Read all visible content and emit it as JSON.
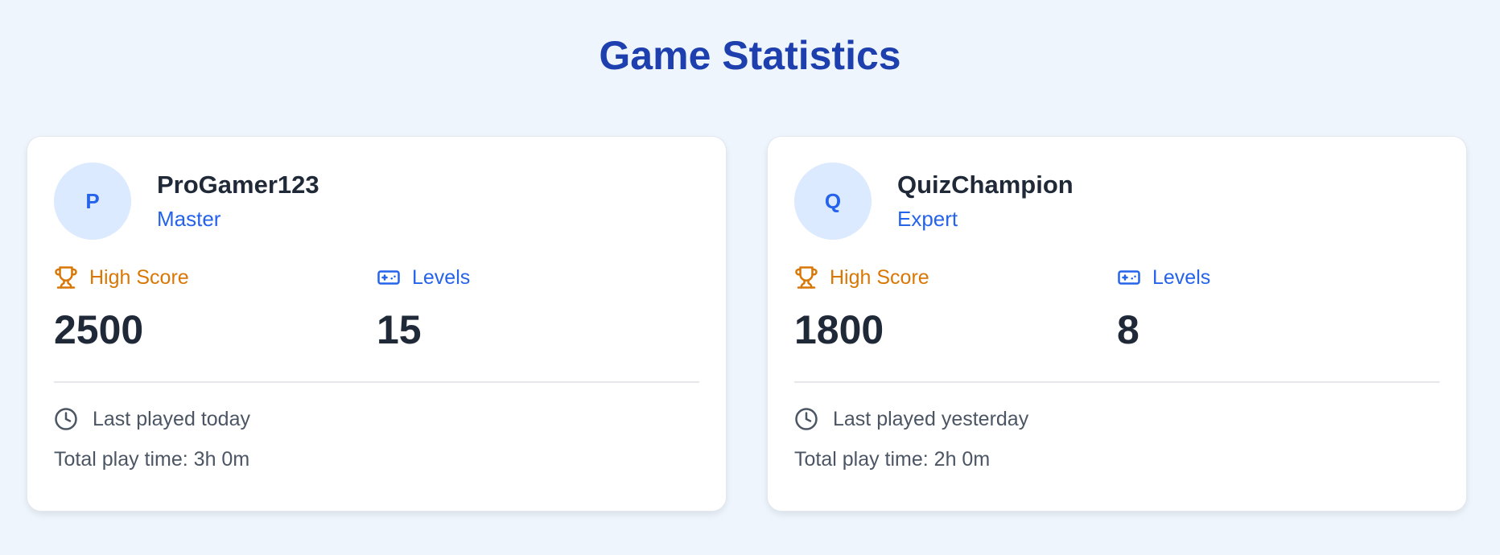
{
  "title": "Game Statistics",
  "colors": {
    "title": "#1e40af",
    "accent": "#2563eb",
    "score": "#d97706",
    "avatar_bg": "#dbeafe"
  },
  "high_score_label": "High Score",
  "levels_label": "Levels",
  "players": [
    {
      "initial": "P",
      "name": "ProGamer123",
      "tier": "Master",
      "high_score": "2500",
      "levels": "15",
      "last_played": "Last played today",
      "total_time": "Total play time: 3h 0m"
    },
    {
      "initial": "Q",
      "name": "QuizChampion",
      "tier": "Expert",
      "high_score": "1800",
      "levels": "8",
      "last_played": "Last played yesterday",
      "total_time": "Total play time: 2h 0m"
    }
  ],
  "icons": {
    "score": "trophy-icon",
    "levels": "gamepad-icon",
    "time": "clock-icon"
  }
}
